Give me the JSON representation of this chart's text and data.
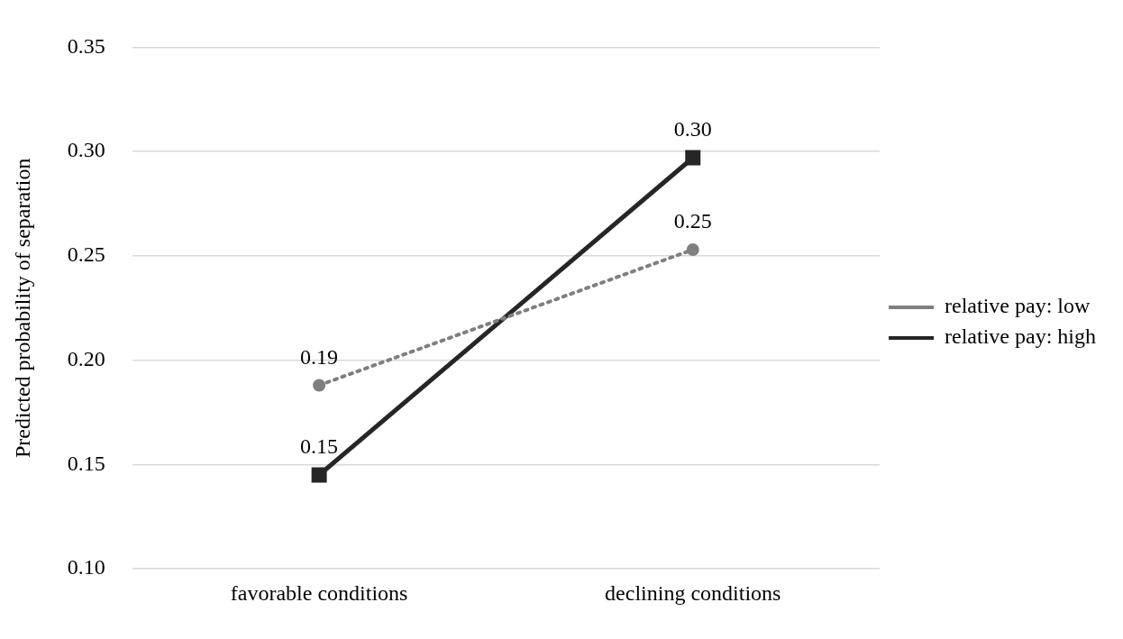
{
  "chart_data": {
    "type": "line",
    "ylabel": "Predicted probability of separation",
    "categories": [
      "favorable conditions",
      "declining conditions"
    ],
    "series": [
      {
        "name": "relative pay: low",
        "color": "#7f7f7f",
        "values": [
          0.188,
          0.253
        ],
        "value_labels": [
          "0.19",
          "0.25"
        ],
        "marker": "circle",
        "line_style": "dotted"
      },
      {
        "name": "relative pay: high",
        "color": "#262626",
        "values": [
          0.145,
          0.297
        ],
        "value_labels": [
          "0.15",
          "0.30"
        ],
        "marker": "square",
        "line_style": "solid"
      }
    ],
    "ylim": [
      0.1,
      0.35
    ],
    "yticks": [
      {
        "value": 0.1,
        "label": "0.10"
      },
      {
        "value": 0.15,
        "label": "0.15"
      },
      {
        "value": 0.2,
        "label": "0.20"
      },
      {
        "value": 0.25,
        "label": "0.25"
      },
      {
        "value": 0.3,
        "label": "0.30"
      },
      {
        "value": 0.35,
        "label": "0.35"
      }
    ],
    "grid": "y",
    "legend": "right"
  }
}
